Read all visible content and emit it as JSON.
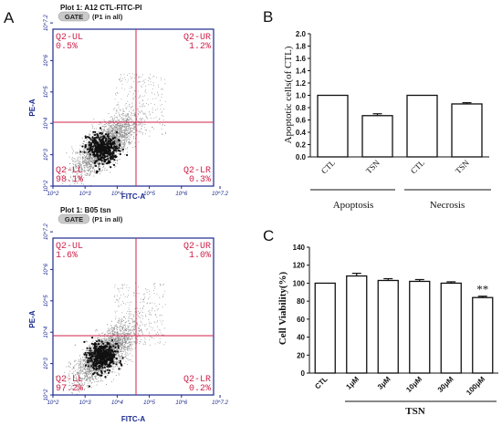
{
  "panels": {
    "a": "A",
    "b": "B",
    "c": "C"
  },
  "chart_data": [
    {
      "type": "scatter",
      "panel": "A",
      "title": "Plot 1: A12 CTL-FITC-PI",
      "gate": "GATE",
      "gate_note": "(P1 in all)",
      "xlabel": "FITC-A",
      "ylabel": "PE-A",
      "xscale": "log",
      "yscale": "log",
      "xlim": [
        100,
        10000000
      ],
      "ylim": [
        100,
        10000000
      ],
      "x_ticks": [
        "10^2",
        "10^3",
        "10^4",
        "10^5",
        "10^6",
        "10^7.2"
      ],
      "y_ticks": [
        "10^2",
        "10^3",
        "10^4",
        "10^5",
        "10^6",
        "10^7.2"
      ],
      "quadrants": [
        {
          "name": "Q2-UL",
          "value": "0.5%"
        },
        {
          "name": "Q2-UR",
          "value": "1.2%"
        },
        {
          "name": "Q2-LL",
          "value": "98.1%"
        },
        {
          "name": "Q2-LR",
          "value": "0.3%"
        }
      ],
      "quadrant_color": "#d0204a",
      "axis_color": "#1b2a8f",
      "cluster": {
        "x_center": 4000,
        "y_center": 2000,
        "spread": "dense"
      },
      "seed": 7
    },
    {
      "type": "scatter",
      "panel": "A",
      "title": "Plot 1: B05 tsn",
      "gate": "GATE",
      "gate_note": "(P1 in all)",
      "xlabel": "FITC-A",
      "ylabel": "PE-A",
      "xscale": "log",
      "yscale": "log",
      "xlim": [
        100,
        10000000
      ],
      "ylim": [
        100,
        10000000
      ],
      "x_ticks": [
        "10^2",
        "10^3",
        "10^4",
        "10^5",
        "10^6",
        "10^7.2"
      ],
      "y_ticks": [
        "10^2",
        "10^3",
        "10^4",
        "10^5",
        "10^6",
        "10^7.2"
      ],
      "quadrants": [
        {
          "name": "Q2-UL",
          "value": "1.6%"
        },
        {
          "name": "Q2-UR",
          "value": "1.0%"
        },
        {
          "name": "Q2-LL",
          "value": "97.2%"
        },
        {
          "name": "Q2-LR",
          "value": "0.2%"
        }
      ],
      "quadrant_color": "#d0204a",
      "axis_color": "#1b2a8f",
      "cluster": {
        "x_center": 4000,
        "y_center": 2000,
        "spread": "dense"
      },
      "seed": 13
    },
    {
      "type": "bar",
      "panel": "B",
      "ylabel": "Apoptotic cells(of CTL)",
      "ylim": [
        0,
        2.0
      ],
      "y_ticks": [
        "0.0",
        "0.2",
        "0.4",
        "0.6",
        "0.8",
        "1.0",
        "1.2",
        "1.4",
        "1.6",
        "1.8",
        "2.0"
      ],
      "categories": [
        "CTL",
        "TSN",
        "CTL",
        "TSN"
      ],
      "values": [
        1.0,
        0.67,
        1.0,
        0.86
      ],
      "errors": [
        0,
        0.03,
        0,
        0.02
      ],
      "groups": [
        {
          "label": "Apoptosis"
        },
        {
          "label": "Necrosis"
        }
      ]
    },
    {
      "type": "bar",
      "panel": "C",
      "ylabel": "Cell Viability(%)",
      "ylim": [
        0,
        140
      ],
      "y_ticks": [
        "0",
        "20",
        "40",
        "60",
        "80",
        "100",
        "120",
        "140"
      ],
      "categories": [
        "CTL",
        "1μM",
        "3μM",
        "10μM",
        "30μM",
        "100μM"
      ],
      "values": [
        100,
        108,
        103,
        102,
        100,
        84
      ],
      "errors": [
        0,
        3,
        2,
        2,
        1.5,
        1.5
      ],
      "annotation": {
        "category": "100μM",
        "text": "**"
      },
      "group_label": "TSN"
    }
  ]
}
